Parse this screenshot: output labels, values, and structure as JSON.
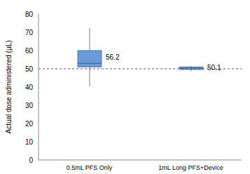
{
  "chart_data": {
    "type": "box",
    "y_label": "Actual dose administered (µL)",
    "categories": [
      "0.5mL PFS Only",
      "1mL Long PFS+Device"
    ],
    "min": [
      40.4,
      48.6
    ],
    "q1": [
      51,
      49.6
    ],
    "median": [
      53,
      50.4
    ],
    "q3": [
      60,
      51
    ],
    "max": [
      72.5,
      51.6
    ],
    "mean": [
      56.2,
      50.1
    ],
    "reference_y": 50,
    "ylim": [
      0,
      80
    ],
    "yticks": [
      0,
      10,
      20,
      30,
      40,
      50,
      60,
      70,
      80
    ],
    "color": "#6a9bd8",
    "grid": false
  }
}
